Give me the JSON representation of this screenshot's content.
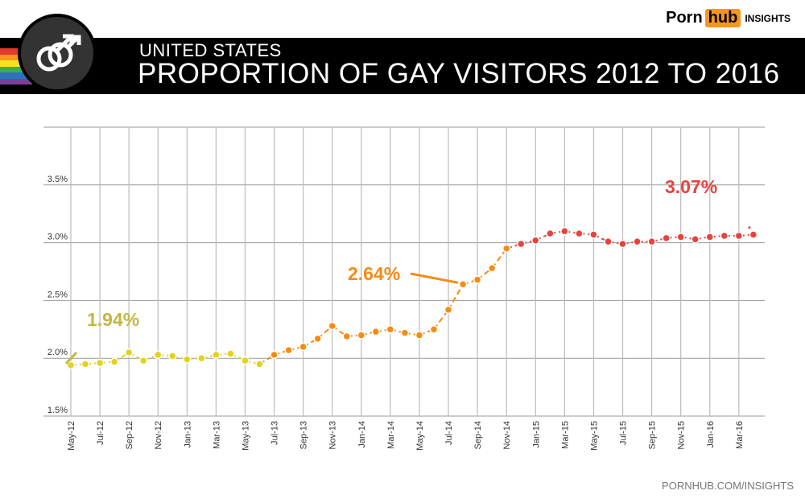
{
  "header": {
    "subtitle": "UNITED STATES",
    "title": "PROPORTION OF GAY VISITORS 2012 TO 2016"
  },
  "brand": {
    "part1": "Porn",
    "part2": "hub",
    "part3": "INSIGHTS",
    "accent": "#f7971d"
  },
  "footer": "PORNHUB.COM/INSIGHTS",
  "rainbow": [
    "#e63a2e",
    "#f7971d",
    "#f5e324",
    "#3fae49",
    "#2a74b9",
    "#7c3f97"
  ],
  "chart_data": {
    "type": "line",
    "title": "PROPORTION OF GAY VISITORS 2012 TO 2016",
    "ylim": [
      1.5,
      4.0
    ],
    "yticks": [
      "1.5%",
      "2.0%",
      "2.5%",
      "3.0%",
      "3.5%"
    ],
    "grid": true,
    "x": [
      "May-12",
      "Jun-12",
      "Jul-12",
      "Aug-12",
      "Sep-12",
      "Oct-12",
      "Nov-12",
      "Dec-12",
      "Jan-13",
      "Feb-13",
      "Mar-13",
      "Apr-13",
      "May-13",
      "Jun-13",
      "Jul-13",
      "Aug-13",
      "Sep-13",
      "Oct-13",
      "Nov-13",
      "Dec-13",
      "Jan-14",
      "Feb-14",
      "Mar-14",
      "Apr-14",
      "May-14",
      "Jun-14",
      "Jul-14",
      "Aug-14",
      "Sep-14",
      "Oct-14",
      "Nov-14",
      "Dec-14",
      "Jan-15",
      "Feb-15",
      "Mar-15",
      "Apr-15",
      "May-15",
      "Jun-15",
      "Jul-15",
      "Aug-15",
      "Sep-15",
      "Oct-15",
      "Nov-15",
      "Dec-15",
      "Jan-16",
      "Feb-16",
      "Mar-16",
      "Apr-16"
    ],
    "values": [
      1.94,
      1.95,
      1.96,
      1.97,
      2.05,
      1.98,
      2.03,
      2.02,
      1.99,
      2.0,
      2.03,
      2.04,
      1.98,
      1.95,
      2.03,
      2.07,
      2.1,
      2.17,
      2.28,
      2.19,
      2.2,
      2.23,
      2.25,
      2.22,
      2.2,
      2.25,
      2.42,
      2.64,
      2.68,
      2.78,
      2.95,
      2.99,
      3.02,
      3.08,
      3.1,
      3.08,
      3.07,
      3.01,
      2.99,
      3.01,
      3.01,
      3.04,
      3.05,
      3.03,
      3.05,
      3.06,
      3.06,
      3.07
    ],
    "segments": [
      {
        "from": 0,
        "to": 13,
        "color": "#e3d21f"
      },
      {
        "from": 13,
        "to": 30,
        "color": "#f78b14"
      },
      {
        "from": 30,
        "to": 47,
        "color": "#e6433f"
      }
    ],
    "annotations": [
      {
        "text": "1.94%",
        "index": 0,
        "color": "#c2b840"
      },
      {
        "text": "2.64%",
        "index": 27,
        "color": "#f78b14"
      },
      {
        "text": "3.07%",
        "index": 47,
        "color": "#e6433f"
      }
    ]
  }
}
